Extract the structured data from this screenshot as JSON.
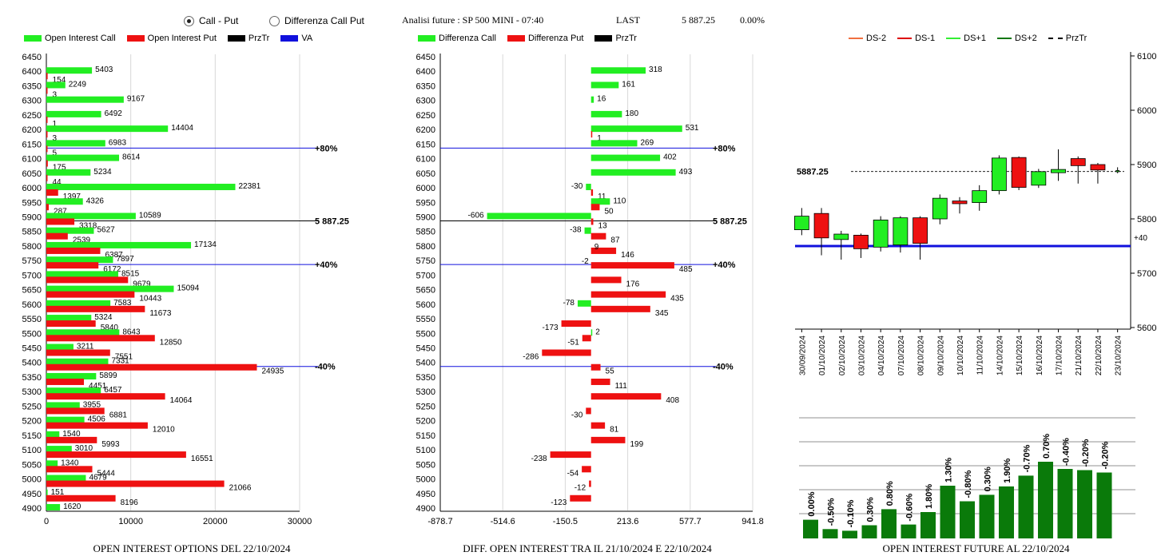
{
  "header": {
    "radio_call_put": "Call - Put",
    "radio_diff": "Differenza Call Put",
    "analysis_title": "Analisi future : SP 500 MINI - 07:40",
    "last_label": "LAST",
    "last_value": "5 887.25",
    "last_change": "0.00%"
  },
  "legend_left": [
    {
      "label": "Open Interest Call",
      "color": "#22ee22"
    },
    {
      "label": "Open Interest Put",
      "color": "#ee1111"
    },
    {
      "label": "PrzTr",
      "color": "#000000"
    },
    {
      "label": "VA",
      "color": "#1010dd"
    }
  ],
  "legend_mid": [
    {
      "label": "Differenza Call",
      "color": "#22ee22"
    },
    {
      "label": "Differenza Put",
      "color": "#ee1111"
    },
    {
      "label": "PrzTr",
      "color": "#000000"
    }
  ],
  "legend_right": [
    {
      "label": "DS-2",
      "color": "#f07040",
      "style": "solid"
    },
    {
      "label": "DS-1",
      "color": "#dd0000",
      "style": "solid"
    },
    {
      "label": "DS+1",
      "color": "#33ee33",
      "style": "solid"
    },
    {
      "label": "DS+2",
      "color": "#117711",
      "style": "solid"
    },
    {
      "label": "PrzTr",
      "color": "#000000",
      "style": "dashed"
    }
  ],
  "captions": {
    "left": "OPEN INTEREST OPTIONS DEL 22/10/2024",
    "mid": "DIFF. OPEN INTEREST TRA IL 21/10/2024 E 22/10/2024",
    "right": "OPEN INTEREST FUTURE AL 22/10/2024"
  },
  "chart_data": [
    {
      "type": "bar",
      "orientation": "horizontal",
      "strikes": [
        6450,
        6400,
        6350,
        6300,
        6250,
        6200,
        6150,
        6100,
        6050,
        6000,
        5950,
        5900,
        5850,
        5800,
        5750,
        5700,
        5650,
        5600,
        5550,
        5500,
        5450,
        5400,
        5350,
        5300,
        5250,
        5200,
        5150,
        5100,
        5050,
        5000,
        4950,
        4900
      ],
      "series": [
        {
          "name": "Open Interest Call",
          "color": "#22ee22",
          "values": [
            null,
            5403,
            2249,
            9167,
            6492,
            14404,
            6983,
            8614,
            5234,
            22381,
            4326,
            10589,
            5627,
            17134,
            7897,
            8515,
            15094,
            7583,
            5324,
            8643,
            3211,
            7331,
            5899,
            6457,
            3955,
            4506,
            1540,
            3010,
            1340,
            4679,
            151,
            1620
          ]
        },
        {
          "name": "Open Interest Put",
          "color": "#ee1111",
          "values": [
            null,
            154,
            3,
            null,
            1,
            3,
            5,
            175,
            44,
            1397,
            287,
            3318,
            2539,
            6387,
            6172,
            9679,
            10443,
            11673,
            5840,
            12850,
            7551,
            24935,
            4451,
            14064,
            6881,
            12010,
            5993,
            16551,
            5444,
            21066,
            8196,
            null
          ]
        }
      ],
      "xticks": [
        "0",
        "10000",
        "20000",
        "30000"
      ],
      "xlim": [
        0,
        30000
      ],
      "reference_lines": [
        {
          "strike": 6150,
          "label": "+80%",
          "color": "#1010dd"
        },
        {
          "strike": 5900,
          "label": "5 887.25",
          "color": "#000000"
        },
        {
          "strike": 5750,
          "label": "+40%",
          "color": "#1010dd"
        },
        {
          "strike": 5400,
          "label": "-40%",
          "color": "#1010dd"
        }
      ]
    },
    {
      "type": "bar",
      "orientation": "horizontal",
      "strikes": [
        6450,
        6400,
        6350,
        6300,
        6250,
        6200,
        6150,
        6100,
        6050,
        6000,
        5950,
        5900,
        5850,
        5800,
        5750,
        5700,
        5650,
        5600,
        5550,
        5500,
        5450,
        5400,
        5350,
        5300,
        5250,
        5200,
        5150,
        5100,
        5050,
        5000,
        4950,
        4900
      ],
      "series": [
        {
          "name": "Differenza Call",
          "color": "#22ee22",
          "values": [
            null,
            318,
            161,
            16,
            180,
            531,
            269,
            402,
            493,
            -30,
            110,
            -606,
            -38,
            null,
            null,
            null,
            null,
            -78,
            null,
            2,
            null,
            null,
            null,
            null,
            null,
            null,
            null,
            null,
            null,
            null,
            null,
            null
          ]
        },
        {
          "name": "Differenza Put",
          "color": "#ee1111",
          "values": [
            null,
            null,
            null,
            null,
            null,
            1,
            null,
            null,
            null,
            11,
            50,
            13,
            87,
            146,
            485,
            176,
            435,
            345,
            -173,
            -51,
            -286,
            55,
            111,
            408,
            -30,
            81,
            199,
            -238,
            -54,
            -12,
            -123,
            null
          ]
        }
      ],
      "extra_labels": [
        {
          "strike": 5800,
          "text": "9"
        },
        {
          "strike": 5750,
          "text": "-2"
        }
      ],
      "xticks": [
        "-878.7",
        "-514.6",
        "-150.5",
        "213.6",
        "577.7",
        "941.8"
      ],
      "xlim": [
        -878.7,
        941.8
      ],
      "reference_lines": [
        {
          "strike": 6150,
          "label": "+80%",
          "color": "#1010dd"
        },
        {
          "strike": 5900,
          "label": "5 887.25",
          "color": "#000000"
        },
        {
          "strike": 5750,
          "label": "+40%",
          "color": "#1010dd"
        },
        {
          "strike": 5400,
          "label": "-40%",
          "color": "#1010dd"
        }
      ]
    },
    {
      "type": "candlestick",
      "dates": [
        "30/09/2024",
        "01/10/2024",
        "02/10/2024",
        "03/10/2024",
        "04/10/2024",
        "07/10/2024",
        "08/10/2024",
        "09/10/2024",
        "10/10/2024",
        "11/10/2024",
        "14/10/2024",
        "15/10/2024",
        "16/10/2024",
        "17/10/2024",
        "21/10/2024",
        "22/10/2024",
        "23/10/2024"
      ],
      "ohlc": [
        [
          5780,
          5820,
          5770,
          5805
        ],
        [
          5810,
          5820,
          5733,
          5765
        ],
        [
          5762,
          5778,
          5725,
          5772
        ],
        [
          5770,
          5773,
          5728,
          5745
        ],
        [
          5748,
          5805,
          5740,
          5798
        ],
        [
          5752,
          5805,
          5738,
          5802
        ],
        [
          5802,
          5805,
          5725,
          5755
        ],
        [
          5800,
          5845,
          5790,
          5838
        ],
        [
          5833,
          5840,
          5810,
          5828
        ],
        [
          5830,
          5862,
          5815,
          5852
        ],
        [
          5852,
          5917,
          5845,
          5912
        ],
        [
          5913,
          5915,
          5853,
          5858
        ],
        [
          5862,
          5892,
          5857,
          5887
        ],
        [
          5885,
          5928,
          5870,
          5891
        ],
        [
          5911,
          5915,
          5865,
          5898
        ],
        [
          5900,
          5903,
          5865,
          5890
        ],
        [
          5887,
          5895,
          5884,
          5889
        ]
      ],
      "yticks": [
        "5600",
        "5700",
        "5800",
        "5900",
        "6000",
        "6100"
      ],
      "ylim": [
        5600,
        6100
      ],
      "price_label": "5887.25",
      "price_level": 5887.25,
      "va_level": 5750,
      "va_label": "+40"
    },
    {
      "type": "bar",
      "categories": [
        "30/09/2024",
        "01/10/2024",
        "02/10/2024",
        "03/10/2024",
        "04/10/2024",
        "07/10/2024",
        "08/10/2024",
        "09/10/2024",
        "10/10/2024",
        "11/10/2024",
        "14/10/2024",
        "15/10/2024",
        "16/10/2024",
        "17/10/2024",
        "21/10/2024",
        "22/10/2024"
      ],
      "values": [
        0.78,
        0.39,
        0.32,
        0.55,
        1.22,
        0.58,
        1.1,
        2.2,
        1.55,
        1.82,
        2.17,
        2.62,
        3.2,
        2.9,
        2.85,
        2.75
      ],
      "labels": [
        "0.00%",
        "-0.50%",
        "-0.10%",
        "0.30%",
        "0.80%",
        "-0.60%",
        "1.80%",
        "1.30%",
        "-0.80%",
        "0.30%",
        "1.90%",
        "-0.70%",
        "0.70%",
        "-0.40%",
        "-0.20%",
        "-0.20%"
      ],
      "color": "#0a7a0a",
      "grid": true
    }
  ]
}
